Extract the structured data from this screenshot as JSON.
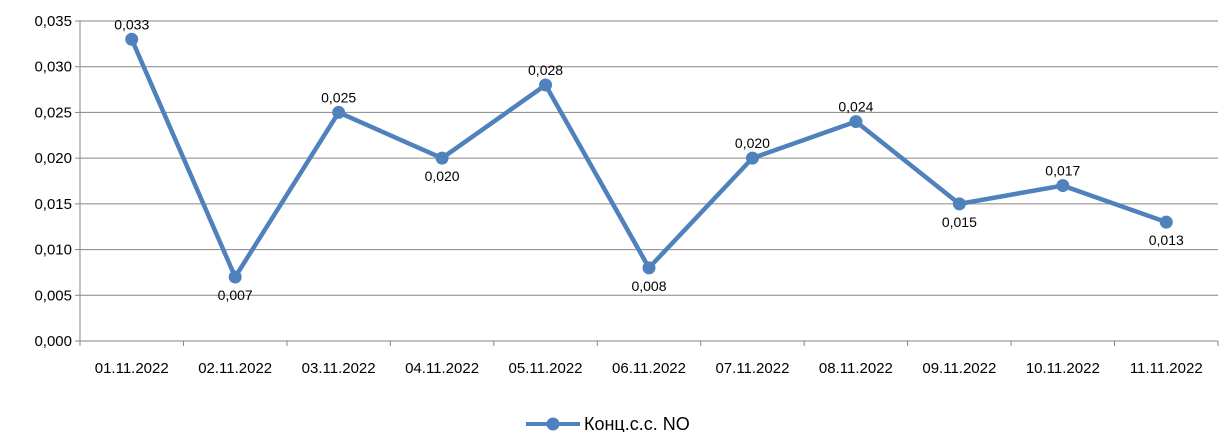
{
  "chart_data": {
    "type": "line",
    "categories": [
      "01.11.2022",
      "02.11.2022",
      "03.11.2022",
      "04.11.2022",
      "05.11.2022",
      "06.11.2022",
      "07.11.2022",
      "08.11.2022",
      "09.11.2022",
      "10.11.2022",
      "11.11.2022"
    ],
    "series": [
      {
        "name": "Конц.с.с. NO",
        "values": [
          0.033,
          0.007,
          0.025,
          0.02,
          0.028,
          0.008,
          0.02,
          0.024,
          0.015,
          0.017,
          0.013
        ],
        "labels": [
          "0,033",
          "0,007",
          "0,025",
          "0,020",
          "0,028",
          "0,008",
          "0,020",
          "0,024",
          "0,015",
          "0,017",
          "0,013"
        ],
        "color": "#4F81BD"
      }
    ],
    "yticks": [
      "0,000",
      "0,005",
      "0,010",
      "0,015",
      "0,020",
      "0,025",
      "0,030",
      "0,035"
    ],
    "ylim": [
      0,
      0.035
    ],
    "grid": true,
    "legend": "bottom",
    "title": "",
    "xlabel": "",
    "ylabel": ""
  }
}
